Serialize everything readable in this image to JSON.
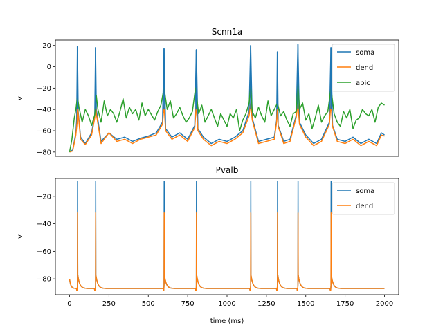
{
  "chart_data": [
    {
      "type": "line",
      "title": "Scnn1a",
      "xlabel": "",
      "ylabel": "v",
      "xlim": [
        -90,
        2090
      ],
      "ylim": [
        -84,
        25
      ],
      "yticks": [
        20,
        0,
        -20,
        -40,
        -60,
        -80
      ],
      "ytick_labels": [
        "20",
        "0",
        "−20",
        "−40",
        "−60",
        "−80"
      ],
      "legend_position": "top-right",
      "spike_times": [
        50,
        165,
        600,
        805,
        1150,
        1320,
        1450,
        1660
      ],
      "spike_peaks": [
        19,
        18,
        17,
        16,
        20,
        14,
        21,
        18
      ],
      "series": [
        {
          "name": "soma",
          "color": "#1f77b4",
          "x": [
            0,
            20,
            40,
            45,
            50,
            55,
            70,
            100,
            140,
            160,
            165,
            170,
            200,
            250,
            300,
            350,
            400,
            450,
            500,
            550,
            590,
            600,
            610,
            650,
            700,
            750,
            795,
            805,
            815,
            850,
            900,
            950,
            1000,
            1050,
            1100,
            1140,
            1150,
            1160,
            1200,
            1250,
            1300,
            1315,
            1320,
            1325,
            1360,
            1400,
            1440,
            1450,
            1460,
            1500,
            1550,
            1600,
            1650,
            1660,
            1670,
            1700,
            1750,
            1800,
            1850,
            1900,
            1950,
            1980,
            2000
          ],
          "values": [
            -80,
            -78,
            -62,
            -50,
            19,
            -42,
            -66,
            -72,
            -62,
            -45,
            18,
            -40,
            -70,
            -62,
            -68,
            -66,
            -70,
            -67,
            -65,
            -62,
            -52,
            17,
            -58,
            -66,
            -62,
            -68,
            -55,
            16,
            -58,
            -66,
            -72,
            -68,
            -70,
            -66,
            -60,
            -42,
            20,
            -48,
            -70,
            -68,
            -66,
            -50,
            14,
            -55,
            -70,
            -68,
            -45,
            21,
            -52,
            -64,
            -72,
            -68,
            -52,
            18,
            -55,
            -68,
            -70,
            -66,
            -72,
            -68,
            -72,
            -62,
            -64
          ]
        },
        {
          "name": "dend",
          "color": "#ff7f0e",
          "x": [
            0,
            20,
            40,
            48,
            50,
            55,
            70,
            100,
            140,
            160,
            165,
            170,
            200,
            250,
            300,
            350,
            400,
            450,
            500,
            550,
            590,
            600,
            610,
            650,
            700,
            750,
            795,
            805,
            815,
            850,
            900,
            950,
            1000,
            1050,
            1100,
            1140,
            1150,
            1160,
            1200,
            1250,
            1300,
            1315,
            1320,
            1325,
            1360,
            1400,
            1440,
            1450,
            1460,
            1500,
            1550,
            1600,
            1650,
            1660,
            1670,
            1700,
            1750,
            1800,
            1850,
            1900,
            1950,
            1980,
            2000
          ],
          "values": [
            -80,
            -79,
            -64,
            -52,
            -36,
            -44,
            -68,
            -73,
            -64,
            -48,
            -36,
            -44,
            -72,
            -62,
            -70,
            -68,
            -72,
            -68,
            -66,
            -64,
            -54,
            -36,
            -60,
            -68,
            -64,
            -70,
            -57,
            -36,
            -60,
            -68,
            -74,
            -70,
            -72,
            -68,
            -62,
            -46,
            -34,
            -50,
            -72,
            -70,
            -68,
            -52,
            -38,
            -56,
            -72,
            -70,
            -47,
            -34,
            -54,
            -66,
            -74,
            -70,
            -54,
            -34,
            -56,
            -70,
            -72,
            -68,
            -74,
            -70,
            -74,
            -64,
            -65
          ]
        },
        {
          "name": "apic",
          "color": "#2ca02c",
          "x": [
            0,
            15,
            30,
            40,
            50,
            60,
            80,
            100,
            120,
            140,
            160,
            170,
            180,
            200,
            220,
            240,
            260,
            280,
            300,
            320,
            340,
            360,
            380,
            400,
            420,
            440,
            460,
            480,
            500,
            520,
            540,
            560,
            580,
            600,
            620,
            640,
            660,
            680,
            700,
            720,
            740,
            760,
            780,
            800,
            820,
            840,
            860,
            880,
            900,
            920,
            940,
            960,
            980,
            1000,
            1020,
            1040,
            1060,
            1080,
            1100,
            1120,
            1140,
            1150,
            1160,
            1180,
            1200,
            1220,
            1240,
            1260,
            1280,
            1300,
            1320,
            1340,
            1360,
            1380,
            1400,
            1420,
            1440,
            1450,
            1460,
            1480,
            1500,
            1520,
            1540,
            1560,
            1580,
            1600,
            1620,
            1640,
            1660,
            1680,
            1700,
            1720,
            1740,
            1760,
            1780,
            1800,
            1820,
            1840,
            1860,
            1880,
            1900,
            1920,
            1940,
            1960,
            1980,
            2000
          ],
          "values": [
            -80,
            -68,
            -48,
            -40,
            -28,
            -38,
            -52,
            -40,
            -46,
            -55,
            -45,
            -27,
            -40,
            -52,
            -32,
            -46,
            -40,
            -44,
            -52,
            -42,
            -30,
            -48,
            -38,
            -44,
            -40,
            -50,
            -34,
            -46,
            -40,
            -45,
            -50,
            -42,
            -36,
            -20,
            -40,
            -32,
            -48,
            -44,
            -38,
            -46,
            -52,
            -48,
            -42,
            -20,
            -44,
            -36,
            -52,
            -46,
            -40,
            -48,
            -56,
            -44,
            -50,
            -56,
            -44,
            -48,
            -40,
            -60,
            -50,
            -44,
            -34,
            -18,
            -42,
            -48,
            -38,
            -46,
            -52,
            -32,
            -46,
            -40,
            -34,
            -46,
            -42,
            -50,
            -56,
            -44,
            -42,
            -15,
            -40,
            -34,
            -50,
            -44,
            -58,
            -48,
            -36,
            -52,
            -46,
            -42,
            -20,
            -44,
            -52,
            -56,
            -42,
            -48,
            -40,
            -58,
            -50,
            -48,
            -40,
            -44,
            -46,
            -40,
            -52,
            -38,
            -34,
            -36
          ]
        }
      ]
    },
    {
      "type": "line",
      "title": "Pvalb",
      "xlabel": "time (ms)",
      "ylabel": "v",
      "xlim": [
        -90,
        2090
      ],
      "ylim": [
        -91.5,
        -7
      ],
      "yticks": [
        -20,
        -40,
        -60,
        -80
      ],
      "ytick_labels": [
        "−20",
        "−40",
        "−60",
        "−80"
      ],
      "xticks": [
        0,
        250,
        500,
        750,
        1000,
        1250,
        1500,
        1750,
        2000
      ],
      "xtick_labels": [
        "0",
        "250",
        "500",
        "750",
        "1000",
        "1250",
        "1500",
        "1750",
        "2000"
      ],
      "legend_position": "top-right",
      "spike_times": [
        50,
        165,
        600,
        805,
        1150,
        1320,
        1450,
        1660
      ],
      "rest_potential": -87,
      "series": [
        {
          "name": "soma",
          "color": "#1f77b4",
          "spike_peak": -9,
          "values_at_rest": -87,
          "start_value": -80
        },
        {
          "name": "dend",
          "color": "#ff7f0e",
          "spike_peak": -32,
          "values_at_rest": -87,
          "start_value": -80
        }
      ]
    }
  ]
}
